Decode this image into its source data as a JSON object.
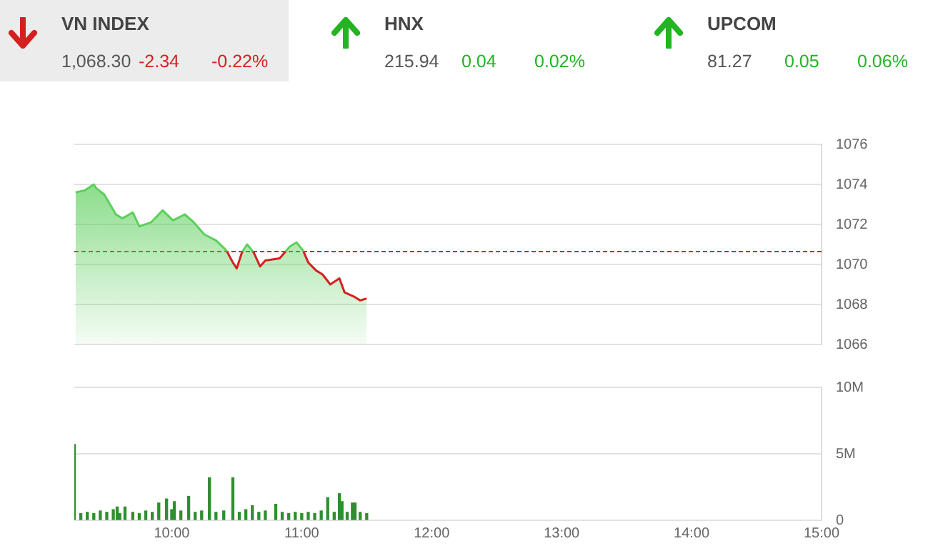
{
  "chart_data": [
    {
      "type": "other",
      "categories": [
        "VN INDEX",
        "HNX",
        "UPCOM"
      ],
      "series": [
        {
          "values": [
            1068.3,
            215.94,
            81.27
          ],
          "value_labels": [
            "1,068.30",
            "215.94",
            "81.27"
          ]
        },
        {
          "values": [
            -2.34,
            0.04,
            0.05
          ],
          "value_labels": [
            "-2.34",
            "0.04",
            "0.05"
          ],
          "colors": [
            "#d42020",
            "#22b422",
            "#22b422"
          ]
        },
        {
          "values": [
            -0.22,
            0.02,
            0.06
          ],
          "value_labels": [
            "-0.22%",
            "0.02%",
            "0.06%"
          ],
          "colors": [
            "#d42020",
            "#22b422",
            "#22b422"
          ]
        }
      ]
    },
    {
      "type": "area",
      "color": "#5ccf5c",
      "x": [
        9.26,
        9.33,
        9.4,
        9.42,
        9.48,
        9.57,
        9.62,
        9.7,
        9.75,
        9.84,
        9.93,
        10.01,
        10.1,
        10.17,
        10.25,
        10.34,
        10.42,
        10.47,
        10.5,
        10.54,
        10.58,
        10.63,
        10.68,
        10.72,
        10.83,
        10.91,
        10.96,
        11.01,
        11.05,
        11.11,
        11.16,
        11.22,
        11.29,
        11.33,
        11.4,
        11.45,
        11.5
      ],
      "values": [
        1073.6,
        1073.7,
        1074.0,
        1073.8,
        1073.5,
        1072.5,
        1072.3,
        1072.6,
        1071.9,
        1072.1,
        1072.7,
        1072.2,
        1072.5,
        1072.1,
        1071.5,
        1071.2,
        1070.7,
        1070.1,
        1069.8,
        1070.6,
        1071.0,
        1070.6,
        1069.9,
        1070.2,
        1070.3,
        1070.9,
        1071.1,
        1070.7,
        1070.1,
        1069.7,
        1069.5,
        1069.0,
        1069.3,
        1068.6,
        1068.4,
        1068.2,
        1068.3
      ],
      "xlim": [
        9.25,
        15
      ],
      "ylim": [
        1066,
        1076
      ],
      "yticks": [
        1066,
        1068,
        1070,
        1072,
        1074,
        1076
      ],
      "grid": "y",
      "tick_labels": "y",
      "ref_lines": [
        {
          "axis": "y",
          "value": 1070.64,
          "color": "#d42020",
          "line_style": "dashed"
        }
      ]
    },
    {
      "type": "bar",
      "color": "#2f8f2f",
      "x": [
        9.25,
        9.3,
        9.35,
        9.4,
        9.45,
        9.5,
        9.55,
        9.58,
        9.6,
        9.64,
        9.7,
        9.75,
        9.8,
        9.85,
        9.9,
        9.96,
        10.0,
        10.02,
        10.07,
        10.13,
        10.18,
        10.23,
        10.29,
        10.34,
        10.4,
        10.47,
        10.52,
        10.57,
        10.62,
        10.67,
        10.72,
        10.8,
        10.85,
        10.9,
        10.95,
        11.0,
        11.05,
        11.1,
        11.15,
        11.2,
        11.25,
        11.29,
        11.31,
        11.35,
        11.39,
        11.41,
        11.45,
        11.5
      ],
      "values": [
        5.7,
        0.5,
        0.6,
        0.5,
        0.7,
        0.6,
        0.8,
        1.0,
        0.5,
        1.0,
        0.6,
        0.5,
        0.7,
        0.6,
        1.3,
        1.6,
        0.8,
        1.4,
        0.7,
        1.8,
        0.6,
        0.7,
        3.2,
        0.6,
        0.7,
        3.2,
        0.6,
        0.8,
        1.1,
        0.6,
        0.7,
        1.2,
        0.6,
        0.5,
        0.6,
        0.5,
        0.6,
        0.5,
        0.7,
        1.7,
        0.6,
        2.0,
        1.4,
        0.6,
        1.3,
        1.3,
        0.6,
        0.5
      ],
      "xlim": [
        9.25,
        15
      ],
      "xticks": [
        {
          "value": 10,
          "label": "10:00"
        },
        {
          "value": 11,
          "label": "11:00"
        },
        {
          "value": 12,
          "label": "12:00"
        },
        {
          "value": 13,
          "label": "13:00"
        },
        {
          "value": 14,
          "label": "14:00"
        },
        {
          "value": 15,
          "label": "15:00"
        }
      ],
      "ylim": [
        0,
        10
      ],
      "yticks": [
        0,
        {
          "value": 5,
          "label": "5M"
        },
        {
          "value": 10,
          "label": "10M"
        }
      ],
      "grid": "y"
    }
  ]
}
